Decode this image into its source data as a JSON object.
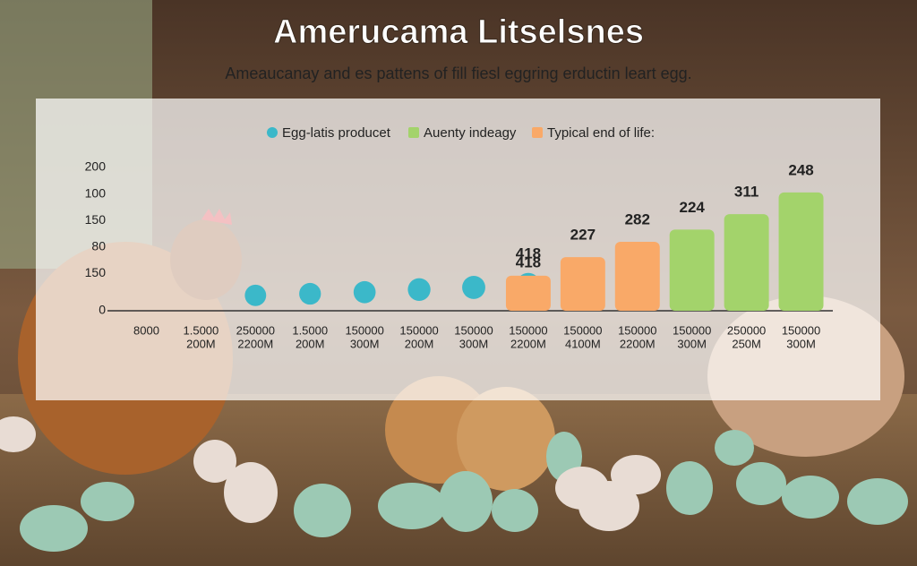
{
  "chart_data": {
    "type": "bar",
    "title": "Amerucama Litselsnes",
    "subtitle": "Ameaucanay and es pattens of fill fiesl eggring erductin leart egg.",
    "categories": [
      "8000",
      "1.5000",
      "250000",
      "1.5000",
      "150000",
      "150000",
      "150000",
      "150000",
      "150000",
      "150000",
      "150000",
      "250000",
      "150000"
    ],
    "subcategories": [
      null,
      "200M",
      "2200M",
      "200M",
      "300M",
      "200M",
      "300M",
      "2200M",
      "4100M",
      "2200M",
      "300M",
      "250M",
      "300M"
    ],
    "series": [
      {
        "name": "Egg-latis producet",
        "color": "#3bb8c9",
        "marker": "dot",
        "values": [
          null,
          null,
          29,
          32,
          35,
          40,
          44,
          49,
          null,
          null,
          null,
          null,
          null
        ]
      },
      {
        "name": "Auenty indeagy",
        "color": "#a3d36b",
        "marker": "bar",
        "values": [
          null,
          null,
          null,
          null,
          null,
          null,
          null,
          null,
          null,
          null,
          153,
          182,
          223
        ]
      },
      {
        "name": "Typical end of life:",
        "color": "#f9a968",
        "marker": "bar",
        "values": [
          null,
          null,
          null,
          null,
          null,
          null,
          null,
          66,
          101,
          130,
          null,
          null,
          null
        ]
      }
    ],
    "annotations": [
      null,
      null,
      null,
      null,
      null,
      null,
      null,
      "418",
      "227",
      "282",
      "224",
      "311",
      "248"
    ],
    "ylim": [
      0,
      270
    ],
    "yticks": [
      0,
      {
        "value": 70,
        "label": "150"
      },
      {
        "value": 120,
        "label": "80"
      },
      {
        "value": 170,
        "label": "150"
      },
      {
        "value": 220,
        "label": "100"
      },
      {
        "value": 270,
        "label": "200"
      }
    ],
    "grid": false
  }
}
